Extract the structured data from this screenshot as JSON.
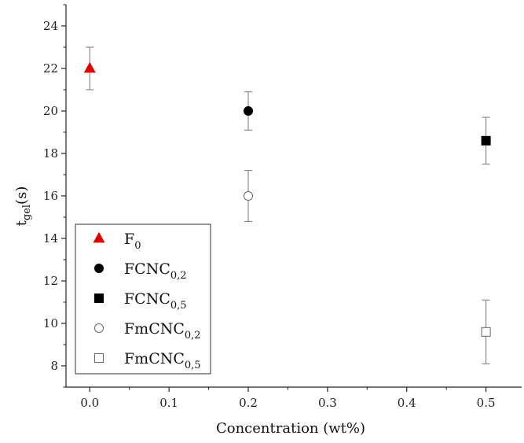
{
  "chart_data": {
    "type": "scatter",
    "xlabel": "Concentration (wt%)",
    "ylabel_main": "t",
    "ylabel_sub": "gel",
    "ylabel_unit": "(s)",
    "xlim": [
      -0.03,
      0.545
    ],
    "ylim": [
      7,
      25
    ],
    "x_ticks": [
      0.0,
      0.1,
      0.2,
      0.3,
      0.4,
      0.5
    ],
    "x_tick_labels": [
      "0.0",
      "0.1",
      "0.2",
      "0.3",
      "0.4",
      "0.5"
    ],
    "y_ticks": [
      8,
      10,
      12,
      14,
      16,
      18,
      20,
      22,
      24
    ],
    "y_tick_labels": [
      "8",
      "10",
      "12",
      "14",
      "16",
      "18",
      "20",
      "22",
      "24"
    ],
    "legend_position": "bottom-left",
    "series": [
      {
        "id": "f0",
        "name": "F",
        "name_sub": "0",
        "marker": "triangle",
        "filled": true,
        "color": "#e00000",
        "points": [
          {
            "x": 0.0,
            "y": 22.0,
            "err": 1.0
          }
        ]
      },
      {
        "id": "fcnc02",
        "name": "FCNC",
        "name_sub": "0,2",
        "marker": "circle",
        "filled": true,
        "color": "#000000",
        "points": [
          {
            "x": 0.2,
            "y": 20.0,
            "err": 0.9
          }
        ]
      },
      {
        "id": "fcnc05",
        "name": "FCNC",
        "name_sub": "0,5",
        "marker": "square",
        "filled": true,
        "color": "#000000",
        "points": [
          {
            "x": 0.5,
            "y": 18.6,
            "err": 1.1
          }
        ]
      },
      {
        "id": "fmcnc02",
        "name": "FmCNC",
        "name_sub": "0,2",
        "marker": "circle",
        "filled": false,
        "color": "#555555",
        "points": [
          {
            "x": 0.2,
            "y": 16.0,
            "err": 1.2
          }
        ]
      },
      {
        "id": "fmcnc05",
        "name": "FmCNC",
        "name_sub": "0,5",
        "marker": "square",
        "filled": false,
        "color": "#555555",
        "points": [
          {
            "x": 0.5,
            "y": 9.6,
            "err": 1.5
          }
        ]
      }
    ]
  }
}
